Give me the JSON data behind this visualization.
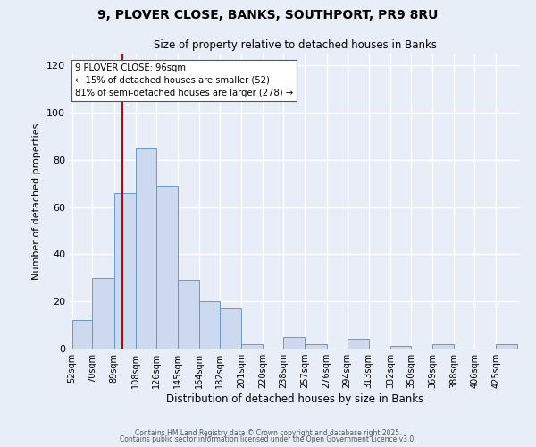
{
  "title": "9, PLOVER CLOSE, BANKS, SOUTHPORT, PR9 8RU",
  "subtitle": "Size of property relative to detached houses in Banks",
  "xlabel": "Distribution of detached houses by size in Banks",
  "ylabel": "Number of detached properties",
  "bar_color": "#ccd9ef",
  "bar_edge_color": "#6699cc",
  "bin_labels": [
    "52sqm",
    "70sqm",
    "89sqm",
    "108sqm",
    "126sqm",
    "145sqm",
    "164sqm",
    "182sqm",
    "201sqm",
    "220sqm",
    "238sqm",
    "257sqm",
    "276sqm",
    "294sqm",
    "313sqm",
    "332sqm",
    "350sqm",
    "369sqm",
    "388sqm",
    "406sqm",
    "425sqm"
  ],
  "bar_heights": [
    12,
    30,
    66,
    85,
    69,
    29,
    20,
    17,
    2,
    0,
    5,
    2,
    0,
    4,
    0,
    1,
    0,
    2,
    0,
    0,
    2
  ],
  "ylim": [
    0,
    125
  ],
  "yticks": [
    0,
    20,
    40,
    60,
    80,
    100,
    120
  ],
  "vline_x": 96,
  "vline_color": "#cc0000",
  "annotation_line1": "9 PLOVER CLOSE: 96sqm",
  "annotation_line2": "← 15% of detached houses are smaller (52)",
  "annotation_line3": "81% of semi-detached houses are larger (278) →",
  "annotation_box_color": "#ffffff",
  "annotation_box_edge": "#555555",
  "footer1": "Contains HM Land Registry data © Crown copyright and database right 2025.",
  "footer2": "Contains public sector information licensed under the Open Government Licence v3.0.",
  "background_color": "#e8eef8",
  "plot_background": "#e8eef8",
  "grid_color": "#ffffff",
  "bin_edges": [
    52,
    70,
    89,
    108,
    126,
    145,
    164,
    182,
    201,
    220,
    238,
    257,
    276,
    294,
    313,
    332,
    350,
    369,
    388,
    406,
    425,
    444
  ]
}
